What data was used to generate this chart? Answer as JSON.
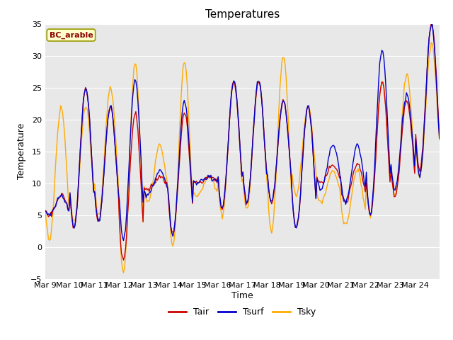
{
  "title": "Temperatures",
  "xlabel": "Time",
  "ylabel": "Temperature",
  "annotation": "BC_arable",
  "legend": [
    "Tair",
    "Tsurf",
    "Tsky"
  ],
  "line_colors": [
    "#cc0000",
    "#0000cc",
    "#ffaa00"
  ],
  "ylim": [
    -5,
    35
  ],
  "tick_labels": [
    "Mar 9",
    "Mar 10",
    "Mar 11",
    "Mar 12",
    "Mar 13",
    "Mar 14",
    "Mar 15",
    "Mar 16",
    "Mar 17",
    "Mar 18",
    "Mar 19",
    "Mar 20",
    "Mar 21",
    "Mar 22",
    "Mar 23",
    "Mar 24"
  ],
  "figure_bg": "#ffffff",
  "plot_bg_color": "#e8e8e8",
  "annotation_bg": "#ffffcc",
  "annotation_border": "#999900",
  "annotation_text_color": "#8b0000",
  "day_peaks_air": [
    8,
    25,
    22,
    21,
    11,
    21,
    11,
    26,
    26,
    23,
    22,
    13,
    13,
    26,
    23,
    35
  ],
  "day_troughs_air": [
    5,
    3,
    4,
    -2,
    9,
    2,
    10,
    6,
    7,
    7,
    3,
    10,
    7,
    5,
    8,
    12
  ],
  "day_peaks_surf": [
    8,
    25,
    22,
    26,
    12,
    23,
    11,
    26,
    26,
    23,
    22,
    16,
    16,
    31,
    24,
    35
  ],
  "day_troughs_surf": [
    5,
    3,
    4,
    1,
    8,
    2,
    10,
    6,
    7,
    7,
    3,
    9,
    7,
    5,
    9,
    11
  ],
  "day_peaks_sky": [
    22,
    22,
    25,
    29,
    16,
    29,
    11,
    26,
    26,
    30,
    22,
    12,
    12,
    26,
    27,
    32
  ],
  "day_troughs_sky": [
    1,
    4,
    5,
    -4,
    7,
    0,
    8,
    5,
    6,
    2.5,
    8,
    7,
    3.5,
    5,
    8,
    11
  ]
}
